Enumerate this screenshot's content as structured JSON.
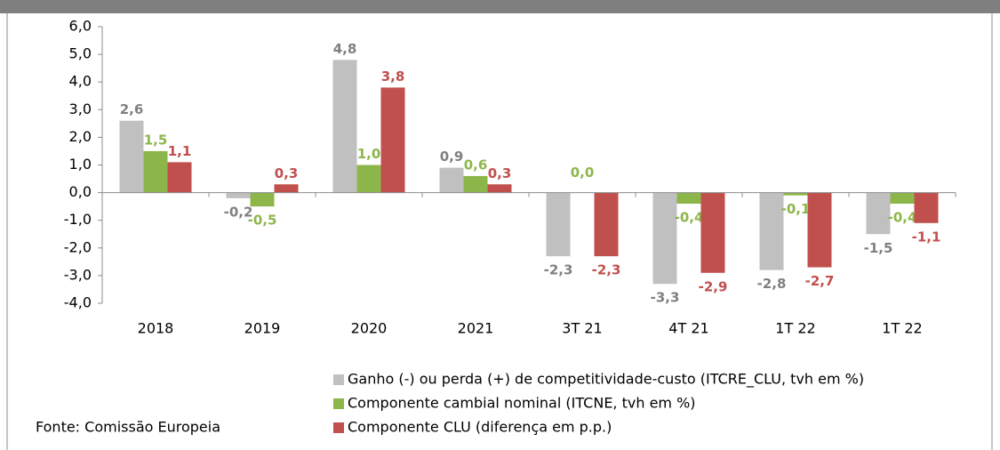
{
  "chart_data": {
    "type": "bar",
    "categories": [
      "2018",
      "2019",
      "2020",
      "2021",
      "3T 21",
      "4T 21",
      "1T 22",
      "1T 22"
    ],
    "series": [
      {
        "name": "Ganho (-) ou perda (+) de competitividade-custo (ITCRE_CLU, tvh em %)",
        "color": "#c0c0c0",
        "label_color": "#808080",
        "values": [
          2.6,
          -0.2,
          4.8,
          0.9,
          -2.3,
          -3.3,
          -2.8,
          -1.5
        ],
        "value_labels": [
          "2,6",
          "-0,2",
          "4,8",
          "0,9",
          "-2,3",
          "-3,3",
          "-2,8",
          "-1,5"
        ]
      },
      {
        "name": "Componente cambial nominal (ITCNE, tvh em %)",
        "color": "#8db64a",
        "label_color": "#8db64a",
        "values": [
          1.5,
          -0.5,
          1.0,
          0.6,
          0.0,
          -0.4,
          -0.1,
          -0.4
        ],
        "value_labels": [
          "1,5",
          "-0,5",
          "1,0",
          "0,6",
          "0,0",
          "-0,4",
          "-0,1",
          "-0,4"
        ]
      },
      {
        "name": "Componente CLU (diferença em p.p.)",
        "color": "#c0504d",
        "label_color": "#c0504d",
        "values": [
          1.1,
          0.3,
          3.8,
          0.3,
          -2.3,
          -2.9,
          -2.7,
          -1.1
        ],
        "value_labels": [
          "1,1",
          "0,3",
          "3,8",
          "0,3",
          "-2,3",
          "-2,9",
          "-2,7",
          "-1,1"
        ]
      }
    ],
    "ylim": [
      -4,
      6
    ],
    "yticks": [
      {
        "value": -4,
        "label": "-4,0"
      },
      {
        "value": -3,
        "label": "-3,0"
      },
      {
        "value": -2,
        "label": "-2,0"
      },
      {
        "value": -1,
        "label": "-1,0"
      },
      {
        "value": 0,
        "label": "0,0"
      },
      {
        "value": 1,
        "label": "1,0"
      },
      {
        "value": 2,
        "label": "2,0"
      },
      {
        "value": 3,
        "label": "3,0"
      },
      {
        "value": 4,
        "label": "4,0"
      },
      {
        "value": 5,
        "label": "5,0"
      },
      {
        "value": 6,
        "label": "6,0"
      }
    ],
    "source": "Fonte: Comissão Europeia"
  }
}
